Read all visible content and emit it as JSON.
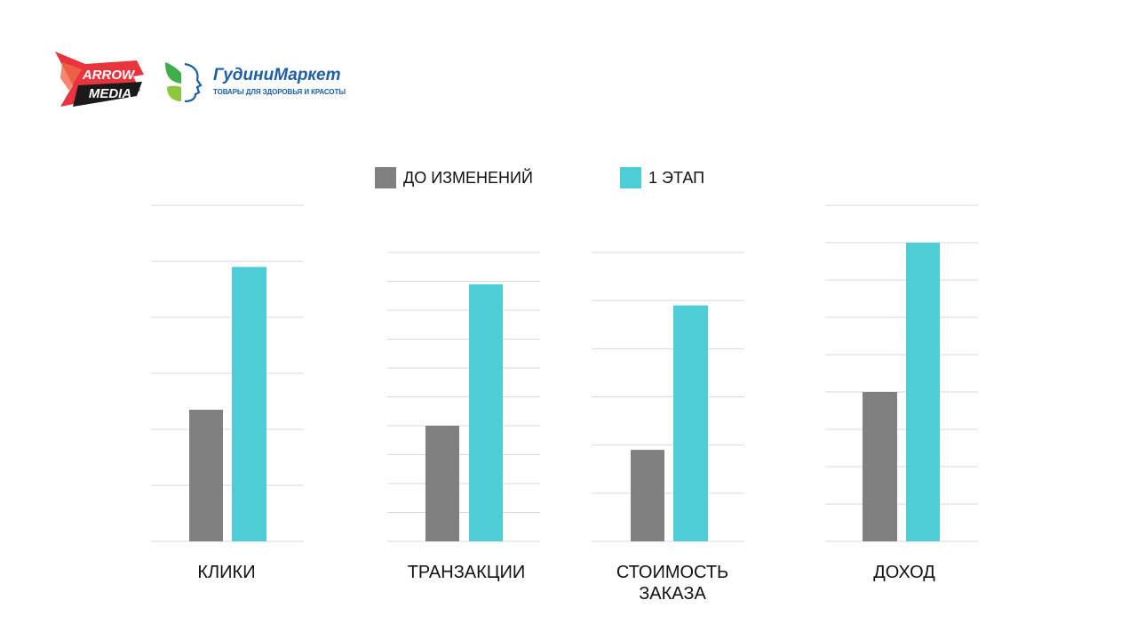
{
  "logos": {
    "arrow_media": {
      "line1": "ARROW",
      "line2": "MEDIA"
    },
    "gudini": {
      "title": "ГудиниМаркет",
      "subtitle": "ТОВАРЫ ДЛЯ ЗДОРОВЬЯ И КРАСОТЫ"
    }
  },
  "colors": {
    "before": "#808080",
    "stage1": "#4ecdd6",
    "grid": "#d9d9d9"
  },
  "chart_data": [
    {
      "type": "bar",
      "categories": [
        "КЛИКИ"
      ],
      "series": [
        {
          "name": "ДО ИЗМЕНЕНИЙ",
          "values": [
            2.35
          ]
        },
        {
          "name": "1 ЭТАП",
          "values": [
            4.9
          ]
        }
      ],
      "ylim": [
        0,
        6
      ],
      "grid": true
    },
    {
      "type": "bar",
      "categories": [
        "ТРАНЗАКЦИИ"
      ],
      "series": [
        {
          "name": "ДО ИЗМЕНЕНИЙ",
          "values": [
            4
          ]
        },
        {
          "name": "1 ЭТАП",
          "values": [
            8.9
          ]
        }
      ],
      "ylim": [
        0,
        10
      ],
      "grid": true
    },
    {
      "type": "bar",
      "categories": [
        "СТОИМОСТЬ ЗАКАЗА"
      ],
      "series": [
        {
          "name": "ДО ИЗМЕНЕНИЙ",
          "values": [
            1.9
          ]
        },
        {
          "name": "1 ЭТАП",
          "values": [
            4.9
          ]
        }
      ],
      "ylim": [
        0,
        6
      ],
      "grid": true
    },
    {
      "type": "bar",
      "categories": [
        "ДОХОД"
      ],
      "series": [
        {
          "name": "ДО ИЗМЕНЕНИЙ",
          "values": [
            4
          ]
        },
        {
          "name": "1 ЭТАП",
          "values": [
            8
          ]
        }
      ],
      "ylim": [
        0,
        9
      ],
      "grid": true
    }
  ],
  "legend": {
    "placement": "top-center",
    "items": [
      {
        "label": "ДО ИЗМЕНЕНИЙ",
        "color": "#808080"
      },
      {
        "label": "1 ЭТАП",
        "color": "#4ecdd6"
      }
    ]
  },
  "category_labels": [
    "КЛИКИ",
    "ТРАНЗАКЦИИ",
    "СТОИМОСТЬ\nЗАКАЗА",
    "ДОХОД"
  ]
}
